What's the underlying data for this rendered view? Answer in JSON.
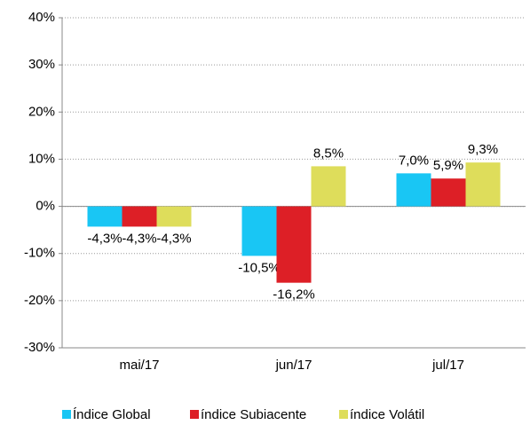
{
  "chart_data": {
    "type": "bar",
    "categories": [
      "mai/17",
      "jun/17",
      "jul/17"
    ],
    "series": [
      {
        "name": "Índice Global",
        "color": "#19c6f4",
        "values": [
          -4.3,
          -10.5,
          7.0
        ],
        "value_labels": [
          "-4,3%",
          "-10,5%",
          "7,0%"
        ]
      },
      {
        "name": "índice Subiacente",
        "color": "#dd1f26",
        "values": [
          -4.3,
          -16.2,
          5.9
        ],
        "value_labels": [
          "-4,3%",
          "-16,2%",
          "5,9%"
        ]
      },
      {
        "name": "índice Volátil",
        "color": "#dedd5b",
        "values": [
          -4.3,
          8.5,
          9.3
        ],
        "value_labels": [
          "-4,3%",
          "8,5%",
          "9,3%"
        ]
      }
    ],
    "ylim": [
      -30,
      40
    ],
    "yticks": [
      {
        "value": -30,
        "label": "-30%"
      },
      {
        "value": -20,
        "label": "-20%"
      },
      {
        "value": -10,
        "label": "-10%"
      },
      {
        "value": 0,
        "label": "0%"
      },
      {
        "value": 10,
        "label": "10%"
      },
      {
        "value": 20,
        "label": "20%"
      },
      {
        "value": 30,
        "label": "30%"
      },
      {
        "value": 40,
        "label": "40%"
      }
    ],
    "grid": true,
    "legend": "bottom"
  }
}
